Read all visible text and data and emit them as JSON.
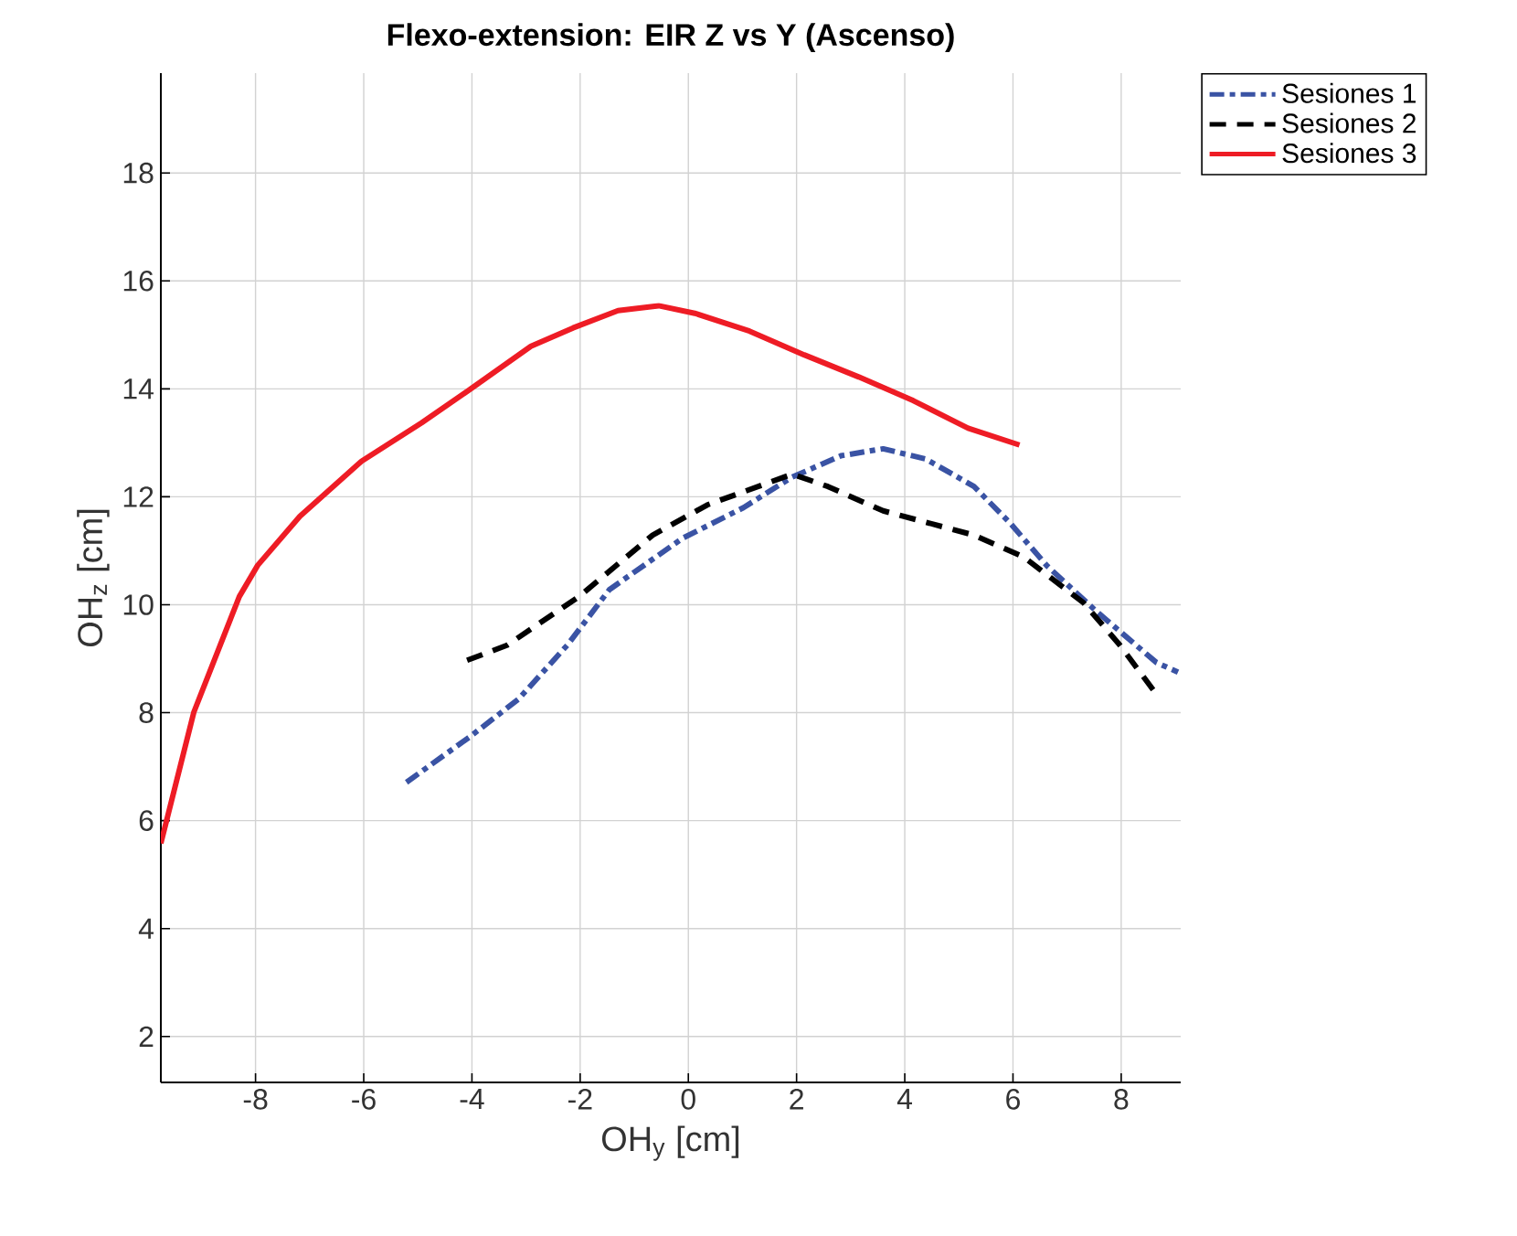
{
  "chart_data": {
    "type": "line",
    "title": "Flexo-extension: EIR Z vs Y (Ascenso)",
    "xlabel": "OH$_{y}$ [cm]",
    "ylabel": "OH$_{z}$ [cm]",
    "xlim": [
      -9.75,
      9.1
    ],
    "ylim": [
      1.15,
      19.85
    ],
    "xticks": [
      -8,
      -6,
      -4,
      -2,
      0,
      2,
      4,
      6,
      8
    ],
    "yticks": [
      2,
      4,
      6,
      8,
      10,
      12,
      14,
      16,
      18
    ],
    "grid": true,
    "legend": "top right",
    "marker": "none",
    "series": [
      {
        "name": "Sesiones 1",
        "color": "#3a53a4",
        "line_style": "dashdot",
        "x": [
          -5.21,
          -4.03,
          -3.14,
          -2.23,
          -1.46,
          -0.11,
          1.02,
          1.91,
          2.82,
          3.6,
          4.39,
          5.28,
          5.95,
          6.63,
          7.54,
          8.65,
          9.05
        ],
        "values": [
          6.71,
          7.56,
          8.25,
          9.26,
          10.28,
          11.23,
          11.8,
          12.36,
          12.76,
          12.89,
          12.7,
          12.19,
          11.51,
          10.72,
          9.88,
          8.93,
          8.75
        ]
      },
      {
        "name": "Sesiones 2",
        "color": "#000000",
        "line_style": "dashed",
        "x": [
          -4.09,
          -3.35,
          -2.01,
          -0.66,
          0.35,
          1.92,
          2.58,
          3.6,
          5.28,
          6.19,
          7.3,
          7.97,
          8.6
        ],
        "values": [
          8.97,
          9.25,
          10.16,
          11.29,
          11.85,
          12.42,
          12.19,
          11.74,
          11.29,
          10.89,
          10.04,
          9.26,
          8.41
        ]
      },
      {
        "name": "Sesiones 3",
        "color": "#ee1c25",
        "line_style": "solid",
        "x": [
          -9.75,
          -9.14,
          -8.3,
          -7.96,
          -7.18,
          -6.04,
          -4.93,
          -4.02,
          -2.91,
          -2.13,
          -1.3,
          -0.55,
          0.12,
          1.13,
          2.14,
          3.15,
          4.16,
          5.17,
          6.12
        ],
        "values": [
          5.58,
          8.01,
          10.15,
          10.73,
          11.64,
          12.66,
          13.37,
          14.0,
          14.79,
          15.13,
          15.45,
          15.54,
          15.4,
          15.07,
          14.63,
          14.22,
          13.78,
          13.27,
          12.96
        ]
      }
    ]
  }
}
